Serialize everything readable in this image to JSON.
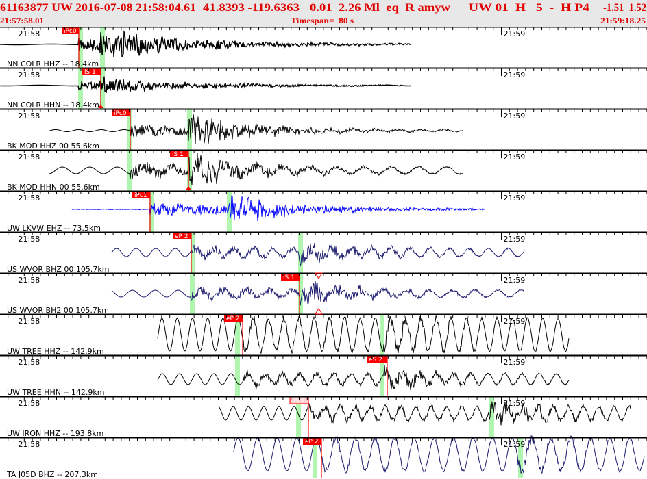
{
  "header": {
    "event_id_line": "61163877 UW 2016-07-08 21:58:04.61",
    "location": "41.8393 -119.6363",
    "magnitude_info": "0.01  2.26 Ml  eq  R amyw",
    "network_info": "UW 01  H   5  -  H P4",
    "residuals": "-1.51  1.52",
    "start_time": "21:57:58.01",
    "timespan": "Timespan=  80 s",
    "end_time": "21:59:18.25"
  },
  "minute_labels": {
    "first": "21:58",
    "second": "21:59"
  },
  "colors": {
    "header_text": "#e00000",
    "header_bg": "#e8e8e8",
    "pick": "#ff0000",
    "pick_window": "#b0f5b0",
    "blue_trace": "#0000ff",
    "navy_trace": "#1a1a6e",
    "black_trace": "#000000"
  },
  "traces": [
    {
      "station": "NN COLR HHZ -- 18.4km",
      "pick": "iPc0",
      "color": "#000000"
    },
    {
      "station": "NN COLR HHN -- 18.4km",
      "pick": "iS 1",
      "color": "#000000"
    },
    {
      "station": "BK MOD HHZ 00 55.6km",
      "pick": "iPc0",
      "color": "#000000"
    },
    {
      "station": "BK MOD HHN 00 55.6km",
      "pick": "iS 1",
      "color": "#000000"
    },
    {
      "station": "UW LKVW EHZ -- 73.5km",
      "pick": "iPc1",
      "color": "#0000ff"
    },
    {
      "station": "US WVOR BHZ 00 105.7km",
      "pick": "eP 2",
      "color": "#1a1a6e"
    },
    {
      "station": "US WVOR BH2 00 105.7km",
      "pick": "iS 1",
      "color": "#1a1a6e"
    },
    {
      "station": "UW TREE HHZ -- 142.9km",
      "pick": "eP 2",
      "color": "#000000"
    },
    {
      "station": "UW TREE HHN -- 142.9km",
      "pick": "eS 2",
      "color": "#000000"
    },
    {
      "station": "UW IRON HHZ -- 193.8km",
      "pick": "iPc1",
      "color": "#000000"
    },
    {
      "station": "TA J05D BHZ -- 207.3km",
      "pick": "eP 2",
      "color": "#1a1a6e"
    }
  ]
}
